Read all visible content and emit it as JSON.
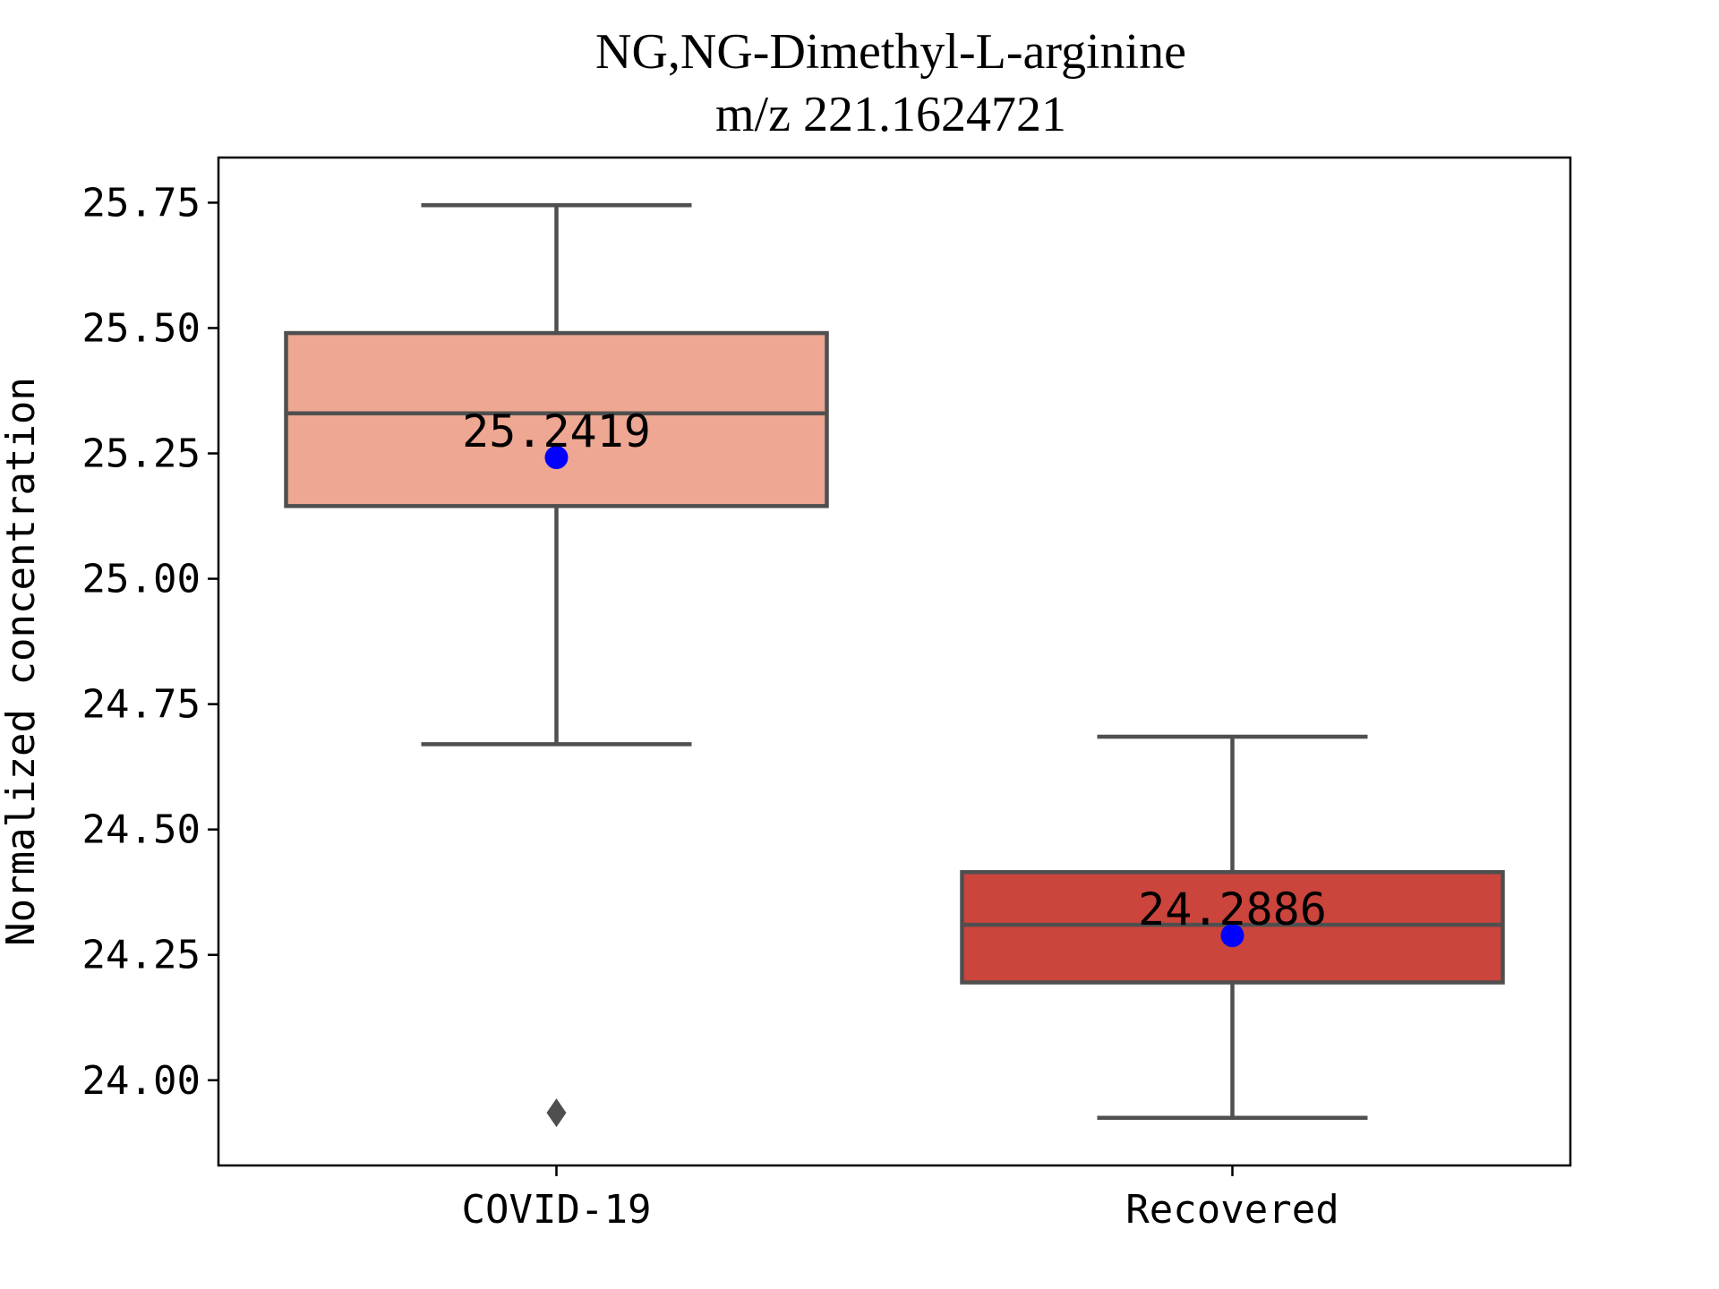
{
  "chart_data": {
    "type": "box",
    "title": "NG,NG-Dimethyl-L-arginine",
    "subtitle": "m/z  221.1624721",
    "ylabel": "Normalized concentration",
    "xlabel": "",
    "ylim": [
      23.83,
      25.84
    ],
    "yticks": [
      24.0,
      24.25,
      24.5,
      24.75,
      25.0,
      25.25,
      25.5,
      25.75
    ],
    "ytick_labels": [
      "24.00",
      "24.25",
      "24.50",
      "24.75",
      "25.00",
      "25.25",
      "25.50",
      "25.75"
    ],
    "categories": [
      "COVID-19",
      "Recovered"
    ],
    "boxes": [
      {
        "category": "COVID-19",
        "whisker_low": 24.67,
        "q1": 25.145,
        "median": 25.33,
        "q3": 25.49,
        "whisker_high": 25.745,
        "outliers": [
          23.935
        ],
        "mean": 25.2419,
        "mean_label": "25.2419",
        "color": "#eda792"
      },
      {
        "category": "Recovered",
        "whisker_low": 23.925,
        "q1": 24.195,
        "median": 24.31,
        "q3": 24.415,
        "whisker_high": 24.685,
        "outliers": [],
        "mean": 24.2886,
        "mean_label": "24.2886",
        "color": "#cb453d"
      }
    ],
    "mean_marker_color": "#0000ff",
    "line_color": "#4f4f4f",
    "grid": false,
    "legend": "none"
  }
}
